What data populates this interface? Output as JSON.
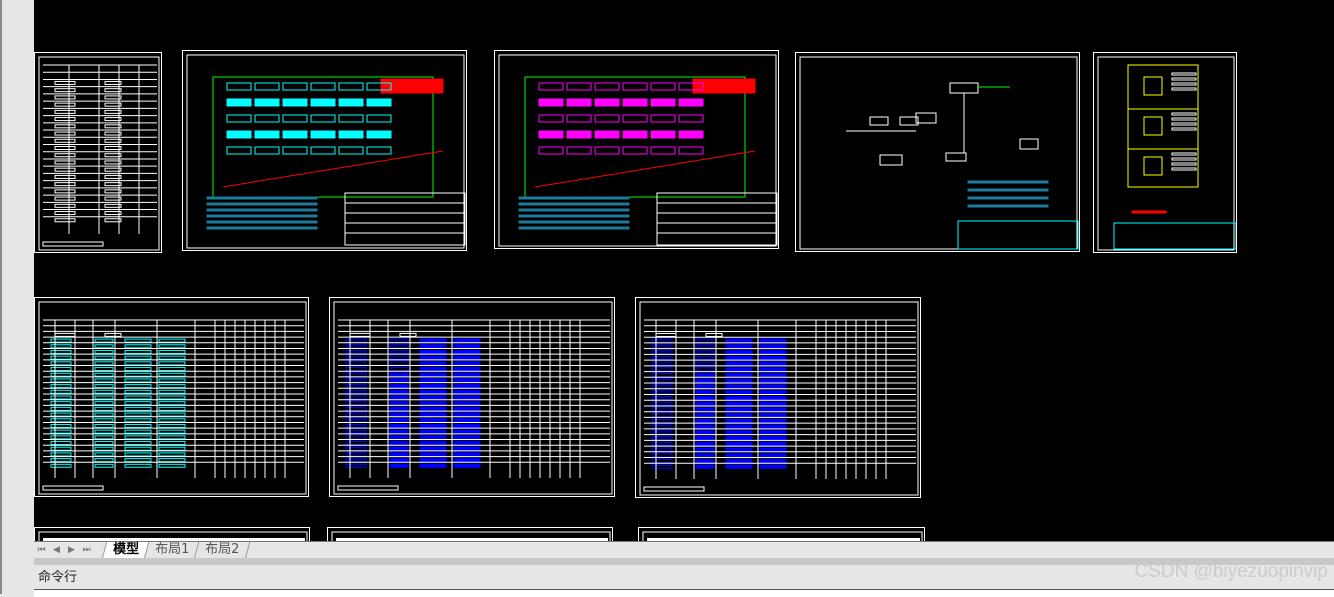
{
  "tabs": {
    "nav": [
      "first-icon",
      "prev-icon",
      "next-icon",
      "last-icon"
    ],
    "items": [
      {
        "label": "模型",
        "active": true
      },
      {
        "label": "布局1",
        "active": false
      },
      {
        "label": "布局2",
        "active": false
      }
    ]
  },
  "command": {
    "label": "命令行",
    "value": ""
  },
  "watermark": "CSDN @biyezuopinvip",
  "colors": {
    "canvas": "#000000",
    "line": "#ffffff",
    "cyan": "#00ffff",
    "red": "#ff0000",
    "green": "#00ff00",
    "yellow": "#ffff00",
    "magenta": "#ff00ff",
    "blue": "#0000ff",
    "teal": "#1f7a9a"
  }
}
